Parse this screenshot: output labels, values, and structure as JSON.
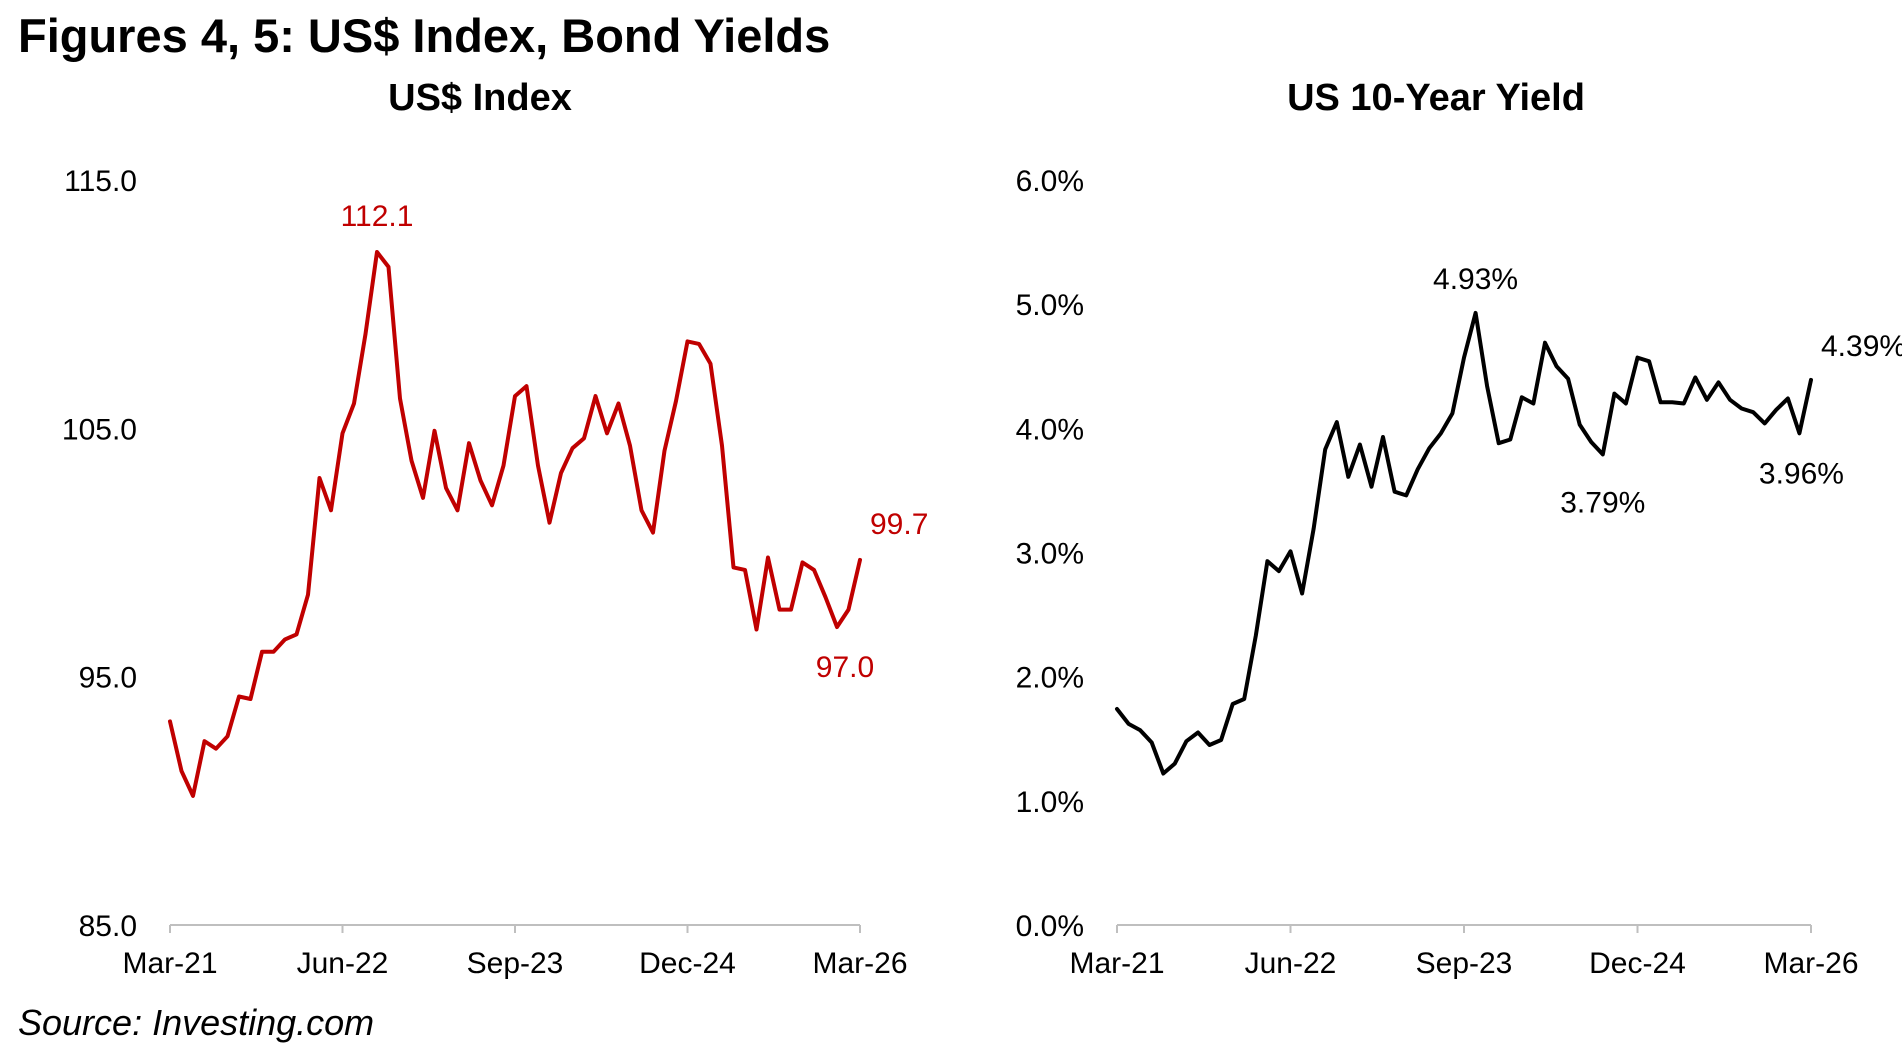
{
  "figure_title": "Figures 4, 5: US$ Index, Bond Yields",
  "source": "Source: Investing.com",
  "chart_data": [
    {
      "type": "line",
      "title": "US$ Index",
      "xlabel": "",
      "ylabel": "",
      "x_tick_labels": [
        "Mar-21",
        "Jun-22",
        "Sep-23",
        "Dec-24",
        "Mar-26"
      ],
      "y_tick_labels": [
        "85.0",
        "95.0",
        "105.0",
        "115.0"
      ],
      "ylim": [
        85,
        115
      ],
      "x_range": [
        0,
        60
      ],
      "color": "#c00000",
      "series": [
        {
          "name": "US$ Index",
          "values": [
            93.2,
            91.2,
            90.2,
            92.4,
            92.1,
            92.6,
            94.2,
            94.1,
            96.0,
            96.0,
            96.5,
            96.7,
            98.3,
            103.0,
            101.7,
            104.8,
            106.0,
            108.8,
            112.1,
            111.5,
            106.2,
            103.7,
            102.2,
            104.9,
            102.6,
            101.7,
            104.4,
            102.9,
            101.9,
            103.5,
            106.3,
            106.7,
            103.5,
            101.2,
            103.2,
            104.2,
            104.6,
            106.3,
            104.8,
            106.0,
            104.3,
            101.7,
            100.8,
            104.1,
            106.1,
            108.5,
            108.4,
            107.6,
            104.3,
            99.4,
            99.3,
            96.9,
            99.8,
            97.7,
            97.7,
            99.6,
            99.3,
            98.2,
            97.0,
            97.7,
            99.7
          ]
        }
      ],
      "annotations": [
        {
          "text": "112.1",
          "x": 18,
          "y": 112.1
        },
        {
          "text": "99.7",
          "x": 60,
          "y": 99.7
        },
        {
          "text": "97.0",
          "x": 58,
          "y": 97.0
        }
      ]
    },
    {
      "type": "line",
      "title": "US 10-Year Yield",
      "xlabel": "",
      "ylabel": "",
      "x_tick_labels": [
        "Mar-21",
        "Jun-22",
        "Sep-23",
        "Dec-24",
        "Mar-26"
      ],
      "y_tick_labels": [
        "0.0%",
        "1.0%",
        "2.0%",
        "3.0%",
        "4.0%",
        "5.0%",
        "6.0%"
      ],
      "ylim": [
        0,
        6
      ],
      "x_range": [
        0,
        60
      ],
      "color": "#000000",
      "series": [
        {
          "name": "US 10-Year Yield",
          "values": [
            1.74,
            1.62,
            1.57,
            1.47,
            1.22,
            1.3,
            1.48,
            1.55,
            1.45,
            1.49,
            1.78,
            1.82,
            2.33,
            2.93,
            2.85,
            3.01,
            2.67,
            3.19,
            3.83,
            4.05,
            3.61,
            3.87,
            3.53,
            3.93,
            3.49,
            3.46,
            3.67,
            3.84,
            3.96,
            4.12,
            4.57,
            4.93,
            4.34,
            3.88,
            3.91,
            4.25,
            4.2,
            4.69,
            4.5,
            4.4,
            4.03,
            3.89,
            3.79,
            4.28,
            4.2,
            4.57,
            4.54,
            4.21,
            4.21,
            4.2,
            4.41,
            4.23,
            4.37,
            4.23,
            4.16,
            4.13,
            4.04,
            4.15,
            4.24,
            3.96,
            4.39
          ]
        }
      ],
      "annotations": [
        {
          "text": "4.93%",
          "x": 31,
          "y": 4.93
        },
        {
          "text": "3.79%",
          "x": 42,
          "y": 3.79
        },
        {
          "text": "4.39%",
          "x": 60,
          "y": 4.39
        },
        {
          "text": "3.96%",
          "x": 59,
          "y": 3.96
        }
      ]
    }
  ]
}
